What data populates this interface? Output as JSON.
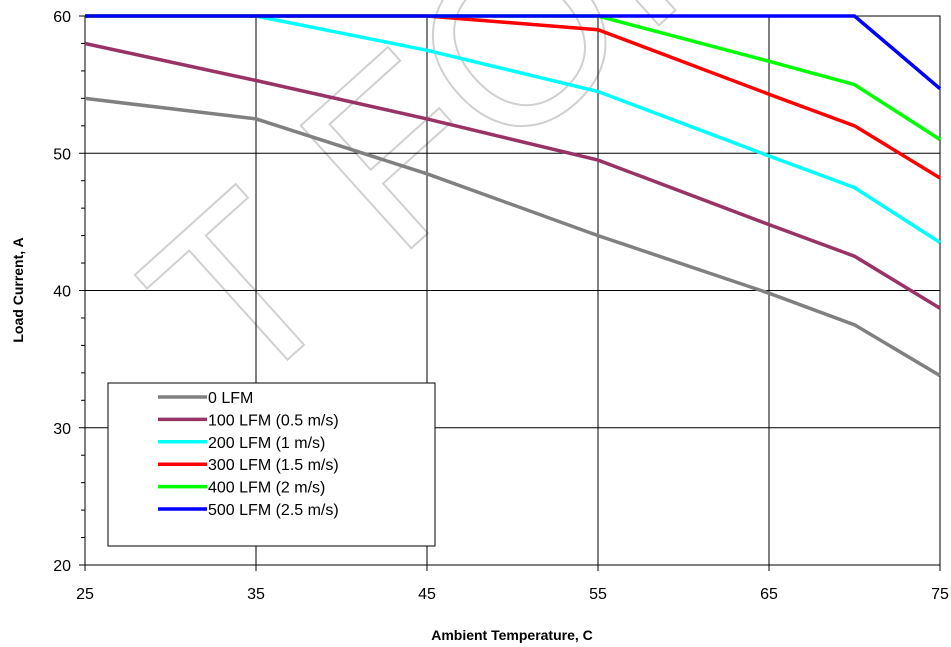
{
  "chart_data": {
    "type": "line",
    "xlabel": "Ambient Temperature, C",
    "ylabel": "Load Current, A",
    "xlim": [
      25,
      75
    ],
    "ylim": [
      20,
      60
    ],
    "x_ticks": [
      "25",
      "35",
      "45",
      "55",
      "65",
      "75"
    ],
    "y_ticks": [
      "20",
      "30",
      "40",
      "50",
      "60"
    ],
    "grid": true,
    "legend_position": "bottom-left",
    "series": [
      {
        "name": "0 LFM",
        "color": "#808080",
        "x": [
          25,
          35,
          45,
          55,
          65,
          70,
          75
        ],
        "y": [
          54,
          52.5,
          48.5,
          44,
          39.8,
          37.5,
          33.8
        ]
      },
      {
        "name": "100 LFM (0.5 m/s)",
        "color": "#993366",
        "x": [
          25,
          35,
          45,
          55,
          65,
          70,
          75
        ],
        "y": [
          58,
          55.3,
          52.5,
          49.5,
          44.8,
          42.5,
          38.7
        ]
      },
      {
        "name": "200 LFM (1 m/s)",
        "color": "#00ffff",
        "x": [
          25,
          35,
          45,
          55,
          65,
          70,
          75
        ],
        "y": [
          60,
          60,
          57.5,
          54.5,
          49.8,
          47.5,
          43.5
        ]
      },
      {
        "name": "300 LFM (1.5 m/s)",
        "color": "#ff0000",
        "x": [
          25,
          45,
          55,
          65,
          70,
          75
        ],
        "y": [
          60,
          60,
          59,
          54.3,
          52,
          48.2
        ]
      },
      {
        "name": "400 LFM (2 m/s)",
        "color": "#00ff00",
        "x": [
          25,
          55,
          65,
          70,
          75
        ],
        "y": [
          60,
          60,
          56.7,
          55,
          51
        ]
      },
      {
        "name": "500 LFM (2.5 m/s)",
        "color": "#0000ff",
        "x": [
          25,
          70,
          75
        ],
        "y": [
          60,
          60,
          54.7
        ]
      }
    ],
    "watermark": "T FOR"
  }
}
